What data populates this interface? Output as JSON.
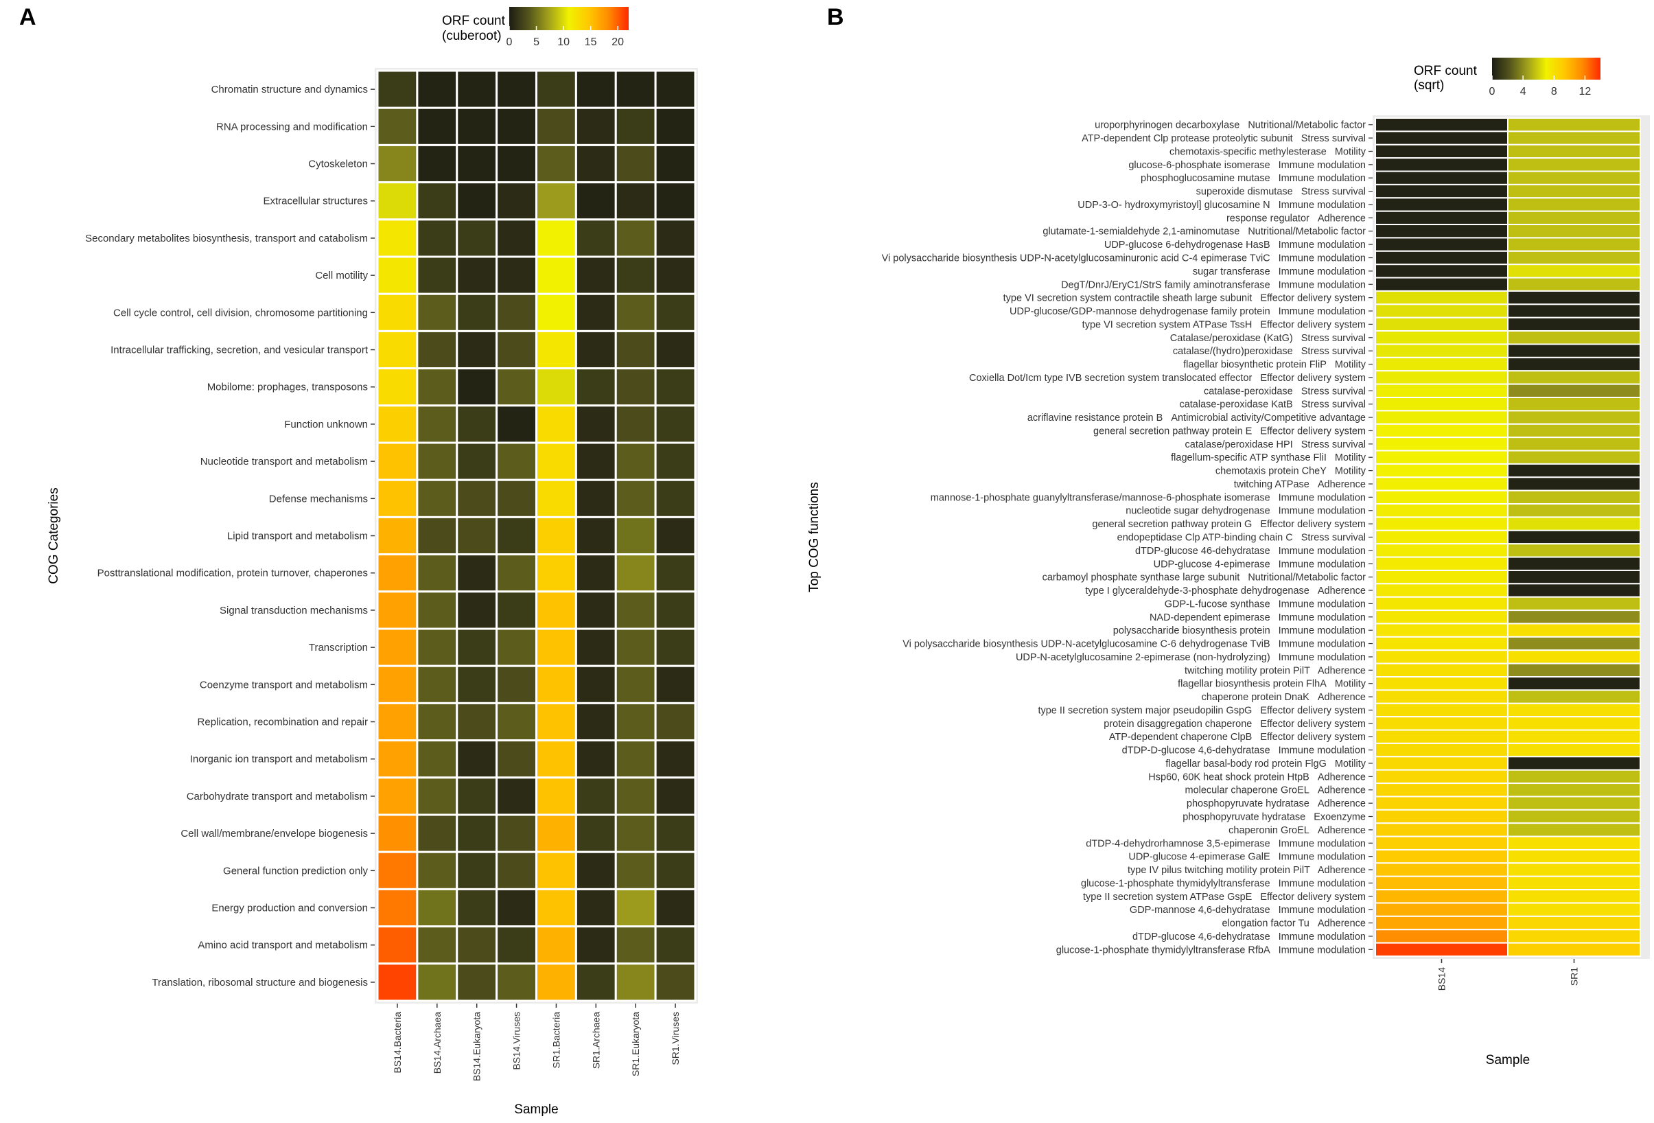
{
  "panels": {
    "A": {
      "letter": "A"
    },
    "B": {
      "letter": "B"
    }
  },
  "colors": {
    "scale": [
      "#1c1c14",
      "#55561c",
      "#a3a21d",
      "#f1f100",
      "#ffc800",
      "#ff8a00",
      "#ff2a00"
    ],
    "tile_gap": "#ffffff",
    "panel_bg": "#ebebeb"
  },
  "chart_data": [
    {
      "type": "heatmap",
      "title": "",
      "xlabel": "Sample",
      "ylabel": "COG Categories",
      "legend": {
        "title": [
          "ORF count",
          "(cuberoot)"
        ],
        "ticks": [
          0,
          5,
          10,
          15,
          20
        ],
        "range": [
          0,
          22
        ],
        "placement": "top"
      },
      "columns": [
        "BS14.Bacteria",
        "BS14.Archaea",
        "BS14.Eukaryota",
        "BS14.Viruses",
        "SR1.Bacteria",
        "SR1.Archaea",
        "SR1.Eukaryota",
        "SR1.Viruses"
      ],
      "rows": [
        "Chromatin structure and dynamics",
        "RNA processing and modification",
        "Cytoskeleton",
        "Extracellular structures",
        "Secondary metabolites biosynthesis, transport and catabolism",
        "Cell motility",
        "Cell cycle control, cell division, chromosome partitioning",
        "Intracellular trafficking, secretion, and vesicular transport",
        "Mobilome: prophages, transposons",
        "Function unknown",
        "Nucleotide transport and metabolism",
        "Defense mechanisms",
        "Lipid transport and metabolism",
        "Posttranslational modification, protein turnover, chaperones",
        "Signal transduction mechanisms",
        "Transcription",
        "Coenzyme transport and metabolism",
        "Replication, recombination and repair",
        "Inorganic ion transport and metabolism",
        "Carbohydrate transport and metabolism",
        "Cell wall/membrane/envelope biogenesis",
        "General function prediction only",
        "Energy production and conversion",
        "Amino acid transport and metabolism",
        "Translation, ribosomal structure and biogenesis"
      ],
      "values": [
        [
          2,
          0.5,
          0.5,
          0.5,
          2,
          0.5,
          0.5,
          0.5
        ],
        [
          4,
          0.5,
          0.5,
          0.5,
          3,
          1,
          2,
          0.5
        ],
        [
          6,
          0.5,
          0.5,
          0.5,
          4,
          1,
          3,
          0.5
        ],
        [
          10,
          2,
          0.5,
          1,
          7,
          0.5,
          1,
          0.5
        ],
        [
          12,
          2,
          2,
          1,
          11,
          2,
          4,
          1
        ],
        [
          12,
          2,
          1,
          1,
          11,
          1,
          2,
          1
        ],
        [
          13,
          4,
          2,
          3,
          11,
          1,
          4,
          2
        ],
        [
          13,
          3,
          1,
          3,
          12,
          1,
          3,
          1
        ],
        [
          13,
          4,
          0.5,
          4,
          10,
          2,
          3,
          2
        ],
        [
          14,
          4,
          2,
          0.5,
          13,
          1,
          3,
          2
        ],
        [
          15,
          4,
          2,
          4,
          13,
          1,
          4,
          2
        ],
        [
          15,
          4,
          3,
          3,
          13,
          1,
          4,
          2
        ],
        [
          16,
          3,
          3,
          2,
          14,
          1,
          5,
          1
        ],
        [
          17,
          4,
          1,
          4,
          14,
          1,
          6,
          2
        ],
        [
          17,
          4,
          1,
          2,
          15,
          1,
          4,
          2
        ],
        [
          17,
          4,
          2,
          4,
          15,
          1,
          4,
          2
        ],
        [
          17,
          4,
          2,
          3,
          15,
          1,
          4,
          1
        ],
        [
          17,
          4,
          3,
          4,
          15,
          1,
          4,
          3
        ],
        [
          17,
          4,
          1,
          3,
          15,
          1,
          4,
          1
        ],
        [
          17,
          4,
          2,
          1,
          15,
          2,
          4,
          1
        ],
        [
          18,
          3,
          2,
          3,
          16,
          2,
          4,
          2
        ],
        [
          19,
          4,
          2,
          3,
          15,
          1,
          4,
          2
        ],
        [
          19,
          5,
          2,
          1,
          15,
          1,
          7,
          1
        ],
        [
          20,
          4,
          3,
          2,
          16,
          1,
          4,
          2
        ],
        [
          21,
          5,
          3,
          4,
          16,
          2,
          6,
          3
        ]
      ]
    },
    {
      "type": "heatmap",
      "title": "",
      "xlabel": "Sample",
      "ylabel": "Top COG functions",
      "legend": {
        "title": [
          "ORF count",
          "(sqrt)"
        ],
        "ticks": [
          0,
          4,
          8,
          12
        ],
        "range": [
          0,
          14
        ],
        "placement": "top-right"
      },
      "columns": [
        "BS14",
        "SR1"
      ],
      "rows": [
        [
          "uroporphyrinogen decarboxylase",
          "Nutritional/Metabolic factor"
        ],
        [
          "ATP-dependent Clp protease proteolytic subunit",
          "Stress survival"
        ],
        [
          "chemotaxis-specific methylesterase",
          "Motility"
        ],
        [
          "glucose-6-phosphate isomerase",
          "Immune modulation"
        ],
        [
          "phosphoglucosamine mutase",
          "Immune modulation"
        ],
        [
          "superoxide dismutase",
          "Stress survival"
        ],
        [
          "UDP-3-O- hydroxymyristoyl] glucosamine N",
          "Immune modulation"
        ],
        [
          "response regulator",
          "Adherence"
        ],
        [
          "glutamate-1-semialdehyde 2,1-aminomutase",
          "Nutritional/Metabolic factor"
        ],
        [
          "UDP-glucose 6-dehydrogenase HasB",
          "Immune modulation"
        ],
        [
          "Vi polysaccharide biosynthesis UDP-N-acetylglucosaminuronic acid C-4 epimerase TviC",
          "Immune modulation"
        ],
        [
          "sugar transferase",
          "Immune modulation"
        ],
        [
          "DegT/DnrJ/EryC1/StrS family aminotransferase",
          "Immune modulation"
        ],
        [
          "type VI secretion system contractile sheath large subunit",
          "Effector delivery system"
        ],
        [
          "UDP-glucose/GDP-mannose dehydrogenase family protein",
          "Immune modulation"
        ],
        [
          "type VI secretion system ATPase TssH",
          "Effector delivery system"
        ],
        [
          "Catalase/peroxidase (KatG)",
          "Stress survival"
        ],
        [
          "catalase/(hydro)peroxidase",
          "Stress survival"
        ],
        [
          "flagellar biosynthetic protein FliP",
          "Motility"
        ],
        [
          "Coxiella Dot/Icm type IVB secretion system translocated effector",
          "Effector delivery system"
        ],
        [
          "catalase-peroxidase",
          "Stress survival"
        ],
        [
          "catalase-peroxidase KatB",
          "Stress survival"
        ],
        [
          "acriflavine resistance protein B",
          "Antimicrobial activity/Competitive advantage"
        ],
        [
          "general secretion pathway protein E",
          "Effector delivery system"
        ],
        [
          "catalase/peroxidase HPI",
          "Stress survival"
        ],
        [
          "flagellum-specific ATP synthase FliI",
          "Motility"
        ],
        [
          "chemotaxis protein CheY",
          "Motility"
        ],
        [
          "twitching ATPase",
          "Adherence"
        ],
        [
          "mannose-1-phosphate guanylyltransferase/mannose-6-phosphate isomerase",
          "Immune modulation"
        ],
        [
          "nucleotide sugar dehydrogenase",
          "Immune modulation"
        ],
        [
          "general secretion pathway protein G",
          "Effector delivery system"
        ],
        [
          "endopeptidase Clp ATP-binding chain C",
          "Stress survival"
        ],
        [
          "dTDP-glucose 46-dehydratase",
          "Immune modulation"
        ],
        [
          "UDP-glucose 4-epimerase",
          "Immune modulation"
        ],
        [
          "carbamoyl phosphate synthase large subunit",
          "Nutritional/Metabolic factor"
        ],
        [
          "type I glyceraldehyde-3-phosphate dehydrogenase",
          "Adherence"
        ],
        [
          "GDP-L-fucose synthase",
          "Immune modulation"
        ],
        [
          "NAD-dependent epimerase",
          "Immune modulation"
        ],
        [
          "polysaccharide biosynthesis protein",
          "Immune modulation"
        ],
        [
          "Vi polysaccharide biosynthesis UDP-N-acetylglucosamine C-6 dehydrogenase TviB",
          "Immune modulation"
        ],
        [
          "UDP-N-acetylglucosamine 2-epimerase (non-hydrolyzing)",
          "Immune modulation"
        ],
        [
          "twitching motility protein PilT",
          "Adherence"
        ],
        [
          "flagellar biosynthesis protein FlhA",
          "Motility"
        ],
        [
          "chaperone protein DnaK",
          "Adherence"
        ],
        [
          "type II secretion system major pseudopilin GspG",
          "Effector delivery system"
        ],
        [
          "protein disaggregation chaperone",
          "Effector delivery system"
        ],
        [
          "ATP-dependent chaperone ClpB",
          "Effector delivery system"
        ],
        [
          "dTDP-D-glucose 4,6-dehydratase",
          "Immune modulation"
        ],
        [
          "flagellar basal-body rod protein FlgG",
          "Motility"
        ],
        [
          "Hsp60, 60K heat shock protein HtpB",
          "Adherence"
        ],
        [
          "molecular chaperone GroEL",
          "Adherence"
        ],
        [
          "phosphopyruvate hydratase",
          "Adherence"
        ],
        [
          "phosphopyruvate hydratase",
          "Exoenzyme"
        ],
        [
          "chaperonin GroEL",
          "Adherence"
        ],
        [
          "dTDP-4-dehydrorhamnose 3,5-epimerase",
          "Immune modulation"
        ],
        [
          "UDP-glucose 4-epimerase GalE",
          "Immune modulation"
        ],
        [
          "type IV pilus twitching motility protein PilT",
          "Adherence"
        ],
        [
          "glucose-1-phosphate thymidylyltransferase",
          "Immune modulation"
        ],
        [
          "type II secretion system ATPase GspE",
          "Effector delivery system"
        ],
        [
          "GDP-mannose 4,6-dehydratase",
          "Immune modulation"
        ],
        [
          "elongation factor Tu",
          "Adherence"
        ],
        [
          "dTDP-glucose 4,6-dehydratase",
          "Immune modulation"
        ],
        [
          "glucose-1-phosphate thymidylyltransferase RfbA",
          "Immune modulation"
        ]
      ],
      "values": [
        [
          0.3,
          5.5
        ],
        [
          0.3,
          5.5
        ],
        [
          0.3,
          5.5
        ],
        [
          0.3,
          5.5
        ],
        [
          0.3,
          5.5
        ],
        [
          0.3,
          5.5
        ],
        [
          0.3,
          5.5
        ],
        [
          0.3,
          5.5
        ],
        [
          0.3,
          5.5
        ],
        [
          0.3,
          5.5
        ],
        [
          0.3,
          5.5
        ],
        [
          0.3,
          6.5
        ],
        [
          0.3,
          5.5
        ],
        [
          6.5,
          0.3
        ],
        [
          6.5,
          0.3
        ],
        [
          6.5,
          0.3
        ],
        [
          6.7,
          5.5
        ],
        [
          6.7,
          0.3
        ],
        [
          6.8,
          0.3
        ],
        [
          6.8,
          5.5
        ],
        [
          6.9,
          4.0
        ],
        [
          6.9,
          5.5
        ],
        [
          6.9,
          5.5
        ],
        [
          7.0,
          5.5
        ],
        [
          7.0,
          5.5
        ],
        [
          7.0,
          5.5
        ],
        [
          7.0,
          0.3
        ],
        [
          7.1,
          0.3
        ],
        [
          7.1,
          5.5
        ],
        [
          7.2,
          5.5
        ],
        [
          7.2,
          6.5
        ],
        [
          7.3,
          0.3
        ],
        [
          7.3,
          5.5
        ],
        [
          7.4,
          0.3
        ],
        [
          7.4,
          0.3
        ],
        [
          7.5,
          0.3
        ],
        [
          7.6,
          5.5
        ],
        [
          7.6,
          4.0
        ],
        [
          7.7,
          8.0
        ],
        [
          7.8,
          4.0
        ],
        [
          7.9,
          8.0
        ],
        [
          8.0,
          4.0
        ],
        [
          8.0,
          0.3
        ],
        [
          8.1,
          5.5
        ],
        [
          8.1,
          8.0
        ],
        [
          8.2,
          8.0
        ],
        [
          8.2,
          8.0
        ],
        [
          8.3,
          8.0
        ],
        [
          8.4,
          0.3
        ],
        [
          8.5,
          5.5
        ],
        [
          8.6,
          5.5
        ],
        [
          8.7,
          5.5
        ],
        [
          8.8,
          5.5
        ],
        [
          8.9,
          5.5
        ],
        [
          9.0,
          8.0
        ],
        [
          9.2,
          8.0
        ],
        [
          9.5,
          8.0
        ],
        [
          9.8,
          8.0
        ],
        [
          10.0,
          8.0
        ],
        [
          10.3,
          8.0
        ],
        [
          10.6,
          8.5
        ],
        [
          11.5,
          8.5
        ],
        [
          13.5,
          9.0
        ]
      ]
    }
  ]
}
